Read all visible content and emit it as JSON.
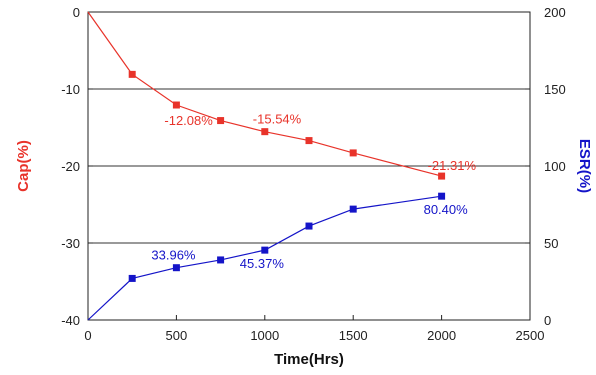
{
  "chart_data": {
    "type": "line",
    "x": [
      0,
      250,
      500,
      750,
      1000,
      1250,
      1500,
      2000
    ],
    "xlabel": "Time(Hrs)",
    "xlim": [
      0,
      2500
    ],
    "x_ticks": [
      "0",
      "500",
      "1000",
      "1500",
      "2000",
      "2500"
    ],
    "ylabel_left": "Cap(%)",
    "ylim_left": [
      -40,
      0
    ],
    "y_ticks_left": [
      "0",
      "-10",
      "-20",
      "-30",
      "-40"
    ],
    "ylabel_right": "ESR(%)",
    "ylim_right": [
      0,
      200
    ],
    "y_ticks_right": [
      "200",
      "150",
      "100",
      "50",
      "0"
    ],
    "grid": "horizontal",
    "series": [
      {
        "axis": "left",
        "color": "#e8332a",
        "marker": "square",
        "values": [
          0,
          -8.1,
          -12.08,
          -14.1,
          -15.54,
          -16.7,
          -18.3,
          -21.31
        ]
      },
      {
        "axis": "right",
        "color": "#1414c8",
        "marker": "square",
        "values": [
          0,
          27,
          33.96,
          39,
          45.37,
          61,
          72,
          80.4
        ]
      }
    ],
    "annotations": [
      {
        "text": "-12.08%",
        "series": 0,
        "x": 500,
        "y": -12.08
      },
      {
        "text": "-15.54%",
        "series": 0,
        "x": 1000,
        "y": -15.54
      },
      {
        "text": "-21.31%",
        "series": 0,
        "x": 2000,
        "y": -21.31
      },
      {
        "text": "33.96%",
        "series": 1,
        "x": 500,
        "y": 33.96
      },
      {
        "text": "45.37%",
        "series": 1,
        "x": 1000,
        "y": 45.37
      },
      {
        "text": "80.40%",
        "series": 1,
        "x": 2000,
        "y": 80.4
      }
    ]
  }
}
